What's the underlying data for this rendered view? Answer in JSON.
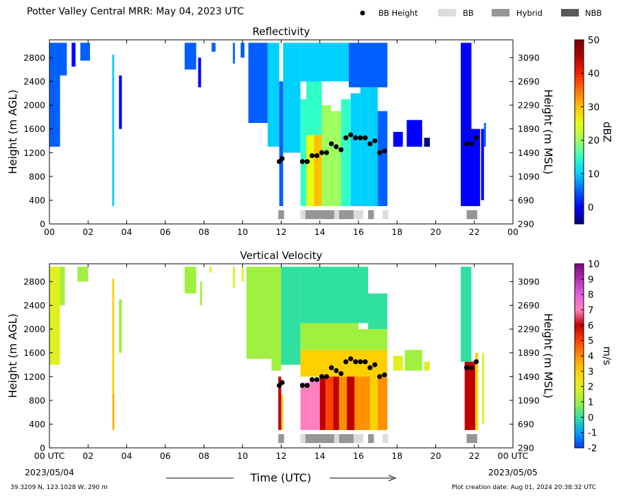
{
  "figure": {
    "title": "Potter Valley Central MRR:  May 04, 2023 UTC",
    "footer_left": "39.3209 N, 123.1028 W, 290 m",
    "footer_right": "Plot creation date: Aug 01, 2024 20:38:32 UTC",
    "xlabel": "Time (UTC)",
    "start_date": "2023/05/04",
    "end_date": "2023/05/05",
    "legend": [
      {
        "label": "BB Height",
        "kind": "dot",
        "color": "#000000"
      },
      {
        "label": "BB",
        "kind": "box",
        "color": "#dcdcdc"
      },
      {
        "label": "Hybrid",
        "kind": "box",
        "color": "#969696"
      },
      {
        "label": "NBB",
        "kind": "box",
        "color": "#5a5a5a"
      }
    ]
  },
  "chart_data": [
    {
      "type": "heatmap",
      "title": "Reflectivity",
      "ylabel": "Height (m AGL)",
      "ylabel_right": "Height (m MSL)",
      "colorbar_label": "dBZ",
      "colorbar_ticks": [
        "50",
        "40",
        "30",
        "20",
        "10",
        "0"
      ],
      "clim": [
        -5,
        50
      ],
      "x_ticks": [
        "00",
        "02",
        "04",
        "06",
        "08",
        "10",
        "12",
        "14",
        "16",
        "18",
        "20",
        "22",
        "00"
      ],
      "y_ticks": [
        "0",
        "400",
        "800",
        "1200",
        "1600",
        "2000",
        "2400",
        "2800"
      ],
      "y_ticks_right": [
        "290",
        "690",
        "1090",
        "1490",
        "1890",
        "2290",
        "2690",
        "3090"
      ],
      "xlim": [
        0,
        24
      ],
      "ylim": [
        0,
        3100
      ],
      "bb_height": [
        {
          "x": 11.9,
          "y": 1050
        },
        {
          "x": 12.05,
          "y": 1100
        },
        {
          "x": 13.1,
          "y": 1050
        },
        {
          "x": 13.35,
          "y": 1050
        },
        {
          "x": 13.6,
          "y": 1150
        },
        {
          "x": 13.85,
          "y": 1150
        },
        {
          "x": 14.1,
          "y": 1200
        },
        {
          "x": 14.35,
          "y": 1200
        },
        {
          "x": 14.6,
          "y": 1350
        },
        {
          "x": 14.85,
          "y": 1300
        },
        {
          "x": 15.1,
          "y": 1250
        },
        {
          "x": 15.35,
          "y": 1450
        },
        {
          "x": 15.6,
          "y": 1500
        },
        {
          "x": 15.85,
          "y": 1450
        },
        {
          "x": 16.1,
          "y": 1450
        },
        {
          "x": 16.35,
          "y": 1450
        },
        {
          "x": 16.6,
          "y": 1350
        },
        {
          "x": 16.85,
          "y": 1400
        },
        {
          "x": 17.1,
          "y": 1200
        },
        {
          "x": 17.35,
          "y": 1230
        },
        {
          "x": 21.6,
          "y": 1350
        },
        {
          "x": 21.85,
          "y": 1350
        },
        {
          "x": 22.1,
          "y": 1450
        }
      ]
    },
    {
      "type": "heatmap",
      "title": "Vertical Velocity",
      "ylabel": "Height (m AGL)",
      "ylabel_right": "Height (m MSL)",
      "colorbar_label": "m/s",
      "colorbar_ticks": [
        "10",
        "9",
        "8",
        "7",
        "6",
        "5",
        "4",
        "3",
        "2",
        "1",
        "0",
        "-1",
        "-2"
      ],
      "clim": [
        -2,
        10
      ],
      "x_ticks": [
        "00 UTC",
        "02",
        "04",
        "06",
        "08",
        "10",
        "12",
        "14",
        "16",
        "18",
        "20",
        "22",
        "00 UTC"
      ],
      "y_ticks": [
        "0",
        "400",
        "800",
        "1200",
        "1600",
        "2000",
        "2400",
        "2800"
      ],
      "y_ticks_right": [
        "290",
        "690",
        "1090",
        "1490",
        "1890",
        "2290",
        "2690",
        "3090"
      ],
      "xlim": [
        0,
        24
      ],
      "ylim": [
        0,
        3100
      ],
      "bb_height": [
        {
          "x": 11.9,
          "y": 1050
        },
        {
          "x": 12.05,
          "y": 1100
        },
        {
          "x": 13.1,
          "y": 1050
        },
        {
          "x": 13.35,
          "y": 1050
        },
        {
          "x": 13.6,
          "y": 1150
        },
        {
          "x": 13.85,
          "y": 1150
        },
        {
          "x": 14.1,
          "y": 1200
        },
        {
          "x": 14.35,
          "y": 1200
        },
        {
          "x": 14.6,
          "y": 1350
        },
        {
          "x": 14.85,
          "y": 1300
        },
        {
          "x": 15.1,
          "y": 1250
        },
        {
          "x": 15.35,
          "y": 1450
        },
        {
          "x": 15.6,
          "y": 1500
        },
        {
          "x": 15.85,
          "y": 1450
        },
        {
          "x": 16.1,
          "y": 1450
        },
        {
          "x": 16.35,
          "y": 1450
        },
        {
          "x": 16.6,
          "y": 1350
        },
        {
          "x": 16.85,
          "y": 1400
        },
        {
          "x": 17.1,
          "y": 1200
        },
        {
          "x": 17.35,
          "y": 1230
        },
        {
          "x": 21.6,
          "y": 1350
        },
        {
          "x": 21.85,
          "y": 1350
        },
        {
          "x": 22.1,
          "y": 1450
        }
      ]
    }
  ],
  "bb_type_bars": [
    {
      "start": 11.85,
      "end": 12.15,
      "type": "Hybrid"
    },
    {
      "start": 13.0,
      "end": 13.25,
      "type": "BB"
    },
    {
      "start": 13.25,
      "end": 14.75,
      "type": "Hybrid"
    },
    {
      "start": 14.75,
      "end": 15.0,
      "type": "BB"
    },
    {
      "start": 15.0,
      "end": 15.75,
      "type": "Hybrid"
    },
    {
      "start": 15.75,
      "end": 16.25,
      "type": "BB"
    },
    {
      "start": 16.5,
      "end": 16.8,
      "type": "Hybrid"
    },
    {
      "start": 17.25,
      "end": 17.55,
      "type": "BB"
    },
    {
      "start": 21.6,
      "end": 22.15,
      "type": "Hybrid"
    }
  ]
}
